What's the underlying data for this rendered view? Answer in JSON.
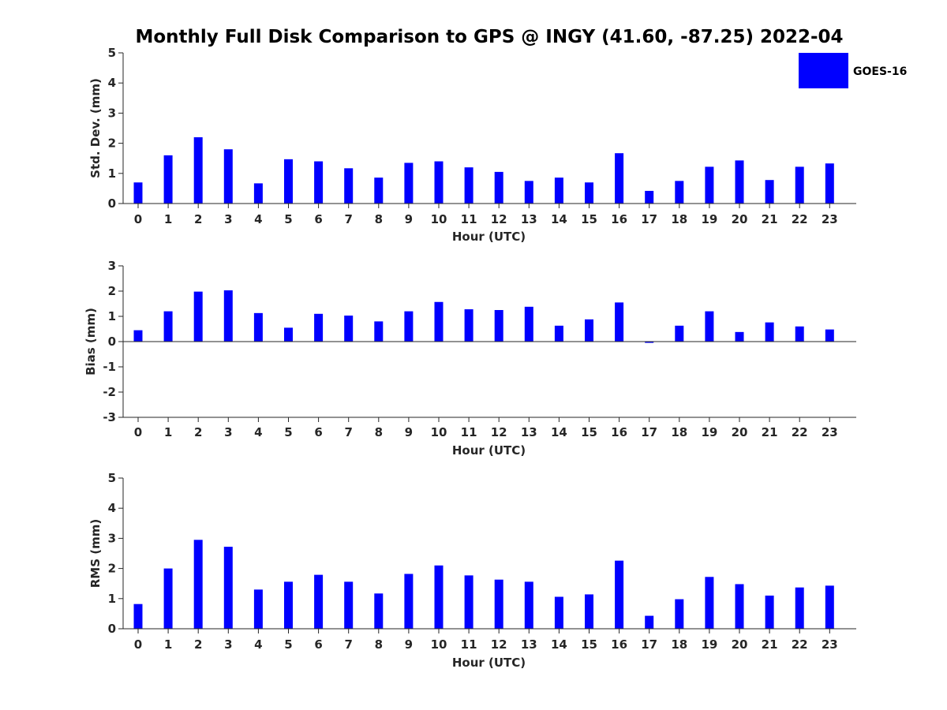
{
  "title": "Monthly Full Disk Comparison to GPS @ INGY (41.60, -87.25) 2022-04",
  "bar_color": "#0000ff",
  "legend": {
    "label": "GOES-16"
  },
  "chart_data": [
    {
      "type": "bar",
      "categories": [
        "0",
        "1",
        "2",
        "3",
        "4",
        "5",
        "6",
        "7",
        "8",
        "9",
        "10",
        "11",
        "12",
        "13",
        "14",
        "15",
        "16",
        "17",
        "18",
        "19",
        "20",
        "21",
        "22",
        "23"
      ],
      "series": [
        {
          "name": "GOES-16",
          "values": [
            0.7,
            1.6,
            2.2,
            1.8,
            0.67,
            1.47,
            1.4,
            1.17,
            0.86,
            1.35,
            1.4,
            1.2,
            1.05,
            0.75,
            0.86,
            0.7,
            1.67,
            0.42,
            0.75,
            1.22,
            1.43,
            0.78,
            1.22,
            1.33
          ]
        }
      ],
      "xlabel": "Hour (UTC)",
      "ylabel": "Std. Dev. (mm)",
      "ylim": [
        0,
        5
      ],
      "yticks": [
        "0",
        "1",
        "2",
        "3",
        "4",
        "5"
      ],
      "grid": false
    },
    {
      "type": "bar",
      "categories": [
        "0",
        "1",
        "2",
        "3",
        "4",
        "5",
        "6",
        "7",
        "8",
        "9",
        "10",
        "11",
        "12",
        "13",
        "14",
        "15",
        "16",
        "17",
        "18",
        "19",
        "20",
        "21",
        "22",
        "23"
      ],
      "series": [
        {
          "name": "GOES-16",
          "values": [
            0.45,
            1.2,
            1.98,
            2.03,
            1.13,
            0.55,
            1.1,
            1.03,
            0.8,
            1.2,
            1.57,
            1.28,
            1.25,
            1.38,
            0.63,
            0.88,
            1.55,
            -0.05,
            0.63,
            1.2,
            0.38,
            0.76,
            0.6,
            0.48
          ]
        }
      ],
      "xlabel": "Hour (UTC)",
      "ylabel": "Bias (mm)",
      "ylim": [
        -3,
        3
      ],
      "yticks": [
        "-3",
        "-2",
        "-1",
        "0",
        "1",
        "2",
        "3"
      ],
      "grid": false
    },
    {
      "type": "bar",
      "categories": [
        "0",
        "1",
        "2",
        "3",
        "4",
        "5",
        "6",
        "7",
        "8",
        "9",
        "10",
        "11",
        "12",
        "13",
        "14",
        "15",
        "16",
        "17",
        "18",
        "19",
        "20",
        "21",
        "22",
        "23"
      ],
      "series": [
        {
          "name": "GOES-16",
          "values": [
            0.82,
            2.0,
            2.95,
            2.72,
            1.3,
            1.56,
            1.79,
            1.56,
            1.17,
            1.82,
            2.1,
            1.77,
            1.63,
            1.56,
            1.06,
            1.14,
            2.26,
            0.43,
            0.98,
            1.72,
            1.48,
            1.1,
            1.37,
            1.43
          ]
        }
      ],
      "xlabel": "Hour (UTC)",
      "ylabel": "RMS (mm)",
      "ylim": [
        0,
        5
      ],
      "yticks": [
        "0",
        "1",
        "2",
        "3",
        "4",
        "5"
      ],
      "grid": false
    }
  ]
}
